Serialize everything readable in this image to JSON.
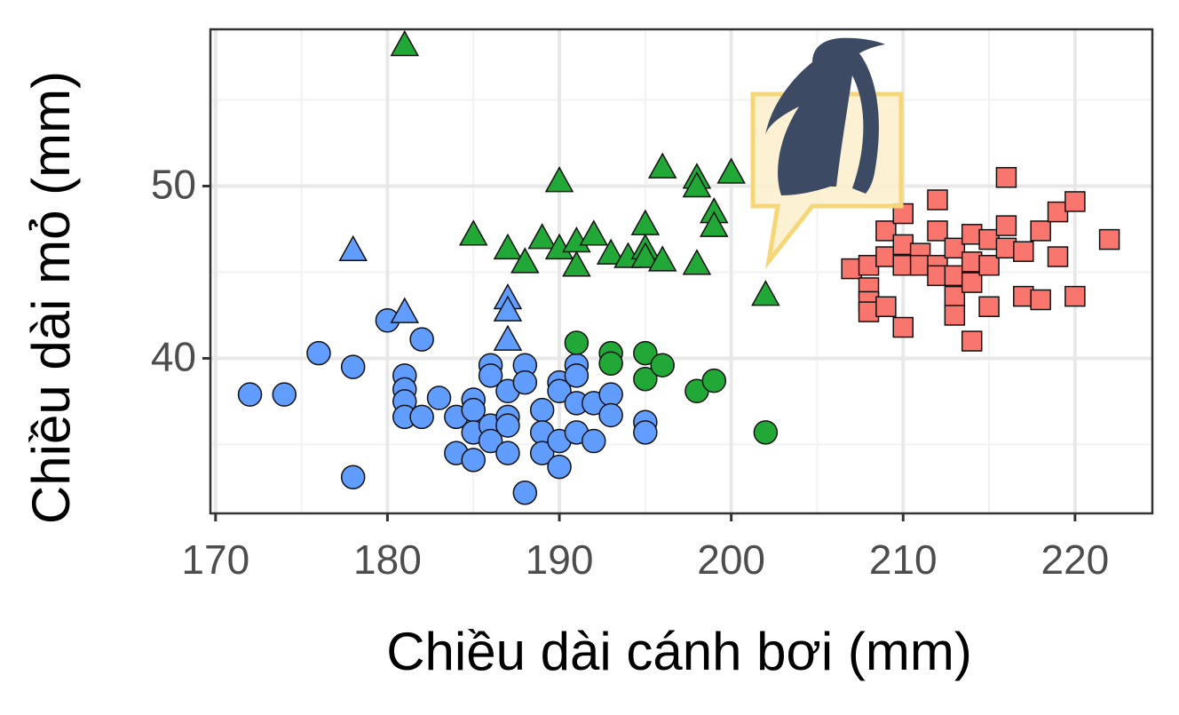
{
  "chart_data": {
    "type": "scatter",
    "x_label": "Chiều dài cánh bơi (mm)",
    "y_label": "Chiều dài mỏ (mm)",
    "xlim": [
      169.7,
      224.5
    ],
    "ylim": [
      31.0,
      59.1
    ],
    "xticks": [
      170,
      180,
      190,
      200,
      210,
      220
    ],
    "yticks": [
      40,
      50
    ],
    "xminor": [
      175,
      185,
      195,
      205,
      215
    ],
    "yminor": [
      35,
      45,
      55
    ],
    "grid": true,
    "series": [
      {
        "color": "#619cff",
        "marker": "circle",
        "x": [
          172,
          174,
          176,
          178,
          178,
          180,
          182,
          181,
          181,
          181,
          181,
          182,
          183,
          184,
          184,
          185,
          185,
          185,
          185,
          186,
          186,
          186,
          186,
          187,
          187,
          187,
          187,
          188,
          188,
          188,
          189,
          189,
          189,
          190,
          190,
          190,
          190,
          191,
          191,
          191,
          191,
          192,
          192,
          193,
          193,
          195,
          195
        ],
        "values": [
          37.9,
          37.9,
          40.3,
          39.5,
          33.1,
          42.2,
          41.1,
          39.0,
          38.2,
          37.5,
          36.6,
          36.6,
          37.7,
          36.6,
          34.5,
          37.6,
          37.0,
          35.7,
          34.1,
          39.6,
          39.0,
          36.1,
          35.2,
          38.1,
          36.6,
          36.1,
          34.5,
          39.6,
          38.6,
          32.2,
          37.0,
          35.7,
          34.5,
          38.6,
          38.1,
          35.2,
          33.7,
          39.6,
          39.0,
          37.4,
          35.7,
          37.4,
          35.2,
          37.9,
          36.7,
          36.3,
          35.7
        ]
      },
      {
        "color": "#619cff",
        "marker": "triangle",
        "x": [
          178,
          181,
          187,
          187,
          187
        ],
        "values": [
          46.3,
          42.7,
          43.5,
          42.8,
          41.1
        ]
      },
      {
        "color": "#22a836",
        "marker": "triangle",
        "x": [
          181,
          190,
          185,
          187,
          188,
          189,
          190,
          191,
          191,
          192,
          193,
          194,
          195,
          195,
          195,
          196,
          196,
          198,
          198,
          198,
          199,
          199,
          200,
          202
        ],
        "values": [
          58.2,
          50.3,
          47.2,
          46.4,
          45.6,
          47.0,
          46.4,
          46.8,
          45.4,
          47.2,
          46.1,
          45.9,
          47.8,
          46.4,
          45.9,
          51.1,
          45.7,
          50.5,
          50.0,
          45.5,
          48.5,
          47.7,
          50.8,
          43.7
        ]
      },
      {
        "color": "#22a836",
        "marker": "circle",
        "x": [
          191,
          193,
          193,
          195,
          195,
          196,
          198,
          199,
          202
        ],
        "values": [
          40.9,
          40.3,
          39.7,
          40.3,
          38.8,
          39.6,
          38.1,
          38.7,
          35.7
        ]
      },
      {
        "color": "#f8766d",
        "marker": "square",
        "x": [
          207,
          208,
          208,
          208,
          208,
          209,
          209,
          209,
          210,
          210,
          210,
          210,
          211,
          211,
          212,
          212,
          212,
          212,
          213,
          213,
          213,
          213,
          214,
          214,
          214,
          214,
          215,
          215,
          215,
          216,
          216,
          216,
          217,
          217,
          218,
          218,
          219,
          219,
          220,
          220,
          222
        ],
        "values": [
          45.2,
          45.4,
          44.1,
          43.3,
          42.7,
          47.4,
          45.9,
          43.0,
          48.4,
          46.6,
          45.4,
          41.8,
          46.1,
          45.4,
          49.2,
          47.4,
          45.4,
          44.8,
          46.4,
          44.8,
          43.6,
          42.5,
          47.2,
          45.6,
          44.4,
          41.0,
          46.9,
          45.4,
          43.0,
          50.5,
          47.7,
          46.4,
          46.2,
          43.6,
          47.4,
          43.4,
          48.5,
          45.9,
          49.1,
          43.6,
          46.9
        ]
      }
    ]
  }
}
